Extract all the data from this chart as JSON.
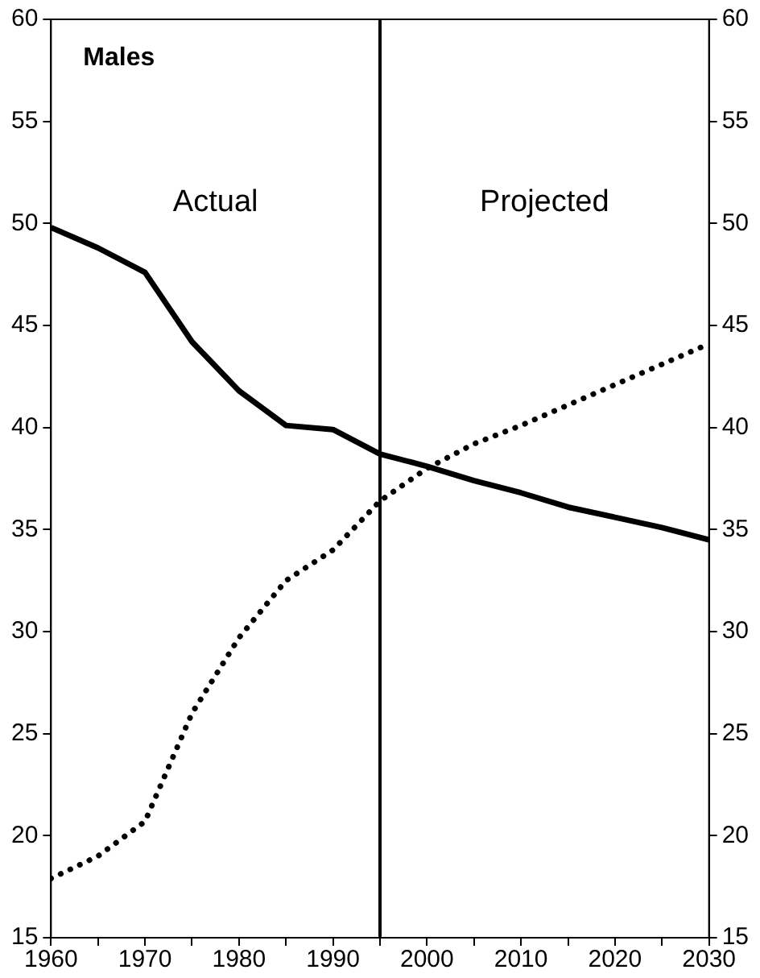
{
  "chart_data": {
    "type": "line",
    "title": "Males",
    "x": [
      1960,
      1965,
      1970,
      1975,
      1980,
      1985,
      1990,
      1995,
      2000,
      2005,
      2010,
      2015,
      2020,
      2025,
      2030
    ],
    "series": [
      {
        "color": "#000000",
        "line_style": "solid",
        "values": [
          49.8,
          48.8,
          47.6,
          44.2,
          41.8,
          40.1,
          39.9,
          38.7,
          38.1,
          37.4,
          36.8,
          36.1,
          35.6,
          35.1,
          34.5
        ]
      },
      {
        "color": "#000000",
        "line_style": "dotted",
        "values": [
          17.9,
          19.0,
          20.7,
          26.0,
          29.7,
          32.5,
          34.0,
          36.4,
          38.0,
          39.2,
          40.1,
          41.1,
          42.1,
          43.1,
          44.1
        ]
      }
    ],
    "xlim": [
      1960,
      2030
    ],
    "xticks": [
      1960,
      {
        "value": 1965,
        "label": null
      },
      1970,
      {
        "value": 1975,
        "label": null
      },
      1980,
      {
        "value": 1985,
        "label": null
      },
      1990,
      {
        "value": 1995,
        "label": null
      },
      2000,
      {
        "value": 2005,
        "label": null
      },
      2010,
      {
        "value": 2015,
        "label": null
      },
      2020,
      {
        "value": 2025,
        "label": null
      },
      2030
    ],
    "ylim": [
      15,
      60
    ],
    "yticks": [
      15,
      20,
      25,
      30,
      35,
      40,
      45,
      50,
      55,
      60
    ],
    "y2lim": [
      15,
      60
    ],
    "y2ticks": [
      15,
      20,
      25,
      30,
      35,
      40,
      45,
      50,
      55,
      60
    ],
    "ref_lines": [
      {
        "axis": "x",
        "value": 1995,
        "color": "#000000"
      }
    ],
    "annotations": [
      "Actual",
      "Projected"
    ],
    "grid": false,
    "legend": false,
    "marker": "none"
  }
}
